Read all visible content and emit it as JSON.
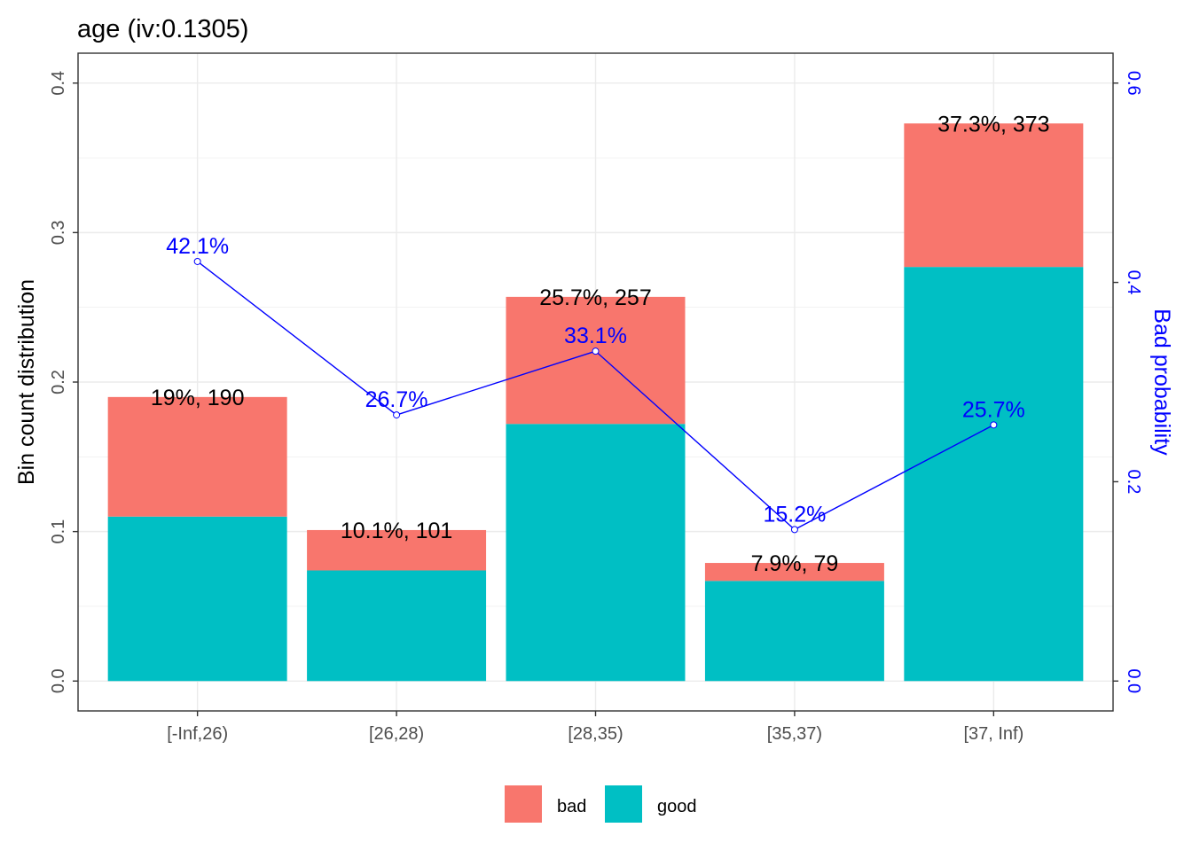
{
  "chart_data": {
    "type": "bar",
    "title": "age  (iv:0.1305)",
    "categories": [
      "[-Inf,26)",
      "[26,28)",
      "[28,35)",
      "[35,37)",
      "[37, Inf)"
    ],
    "series": [
      {
        "name": "good",
        "values": [
          0.11,
          0.074,
          0.172,
          0.067,
          0.277
        ]
      },
      {
        "name": "bad",
        "values": [
          0.08,
          0.027,
          0.085,
          0.012,
          0.096
        ]
      }
    ],
    "bar_labels": [
      "19%, 190",
      "10.1%, 101",
      "25.7%, 257",
      "7.9%, 79",
      "37.3%, 373"
    ],
    "totals": [
      0.19,
      0.101,
      0.257,
      0.079,
      0.373
    ],
    "line": {
      "values": [
        0.421,
        0.267,
        0.331,
        0.152,
        0.257
      ],
      "labels": [
        "42.1%",
        "26.7%",
        "33.1%",
        "15.2%",
        "25.7%"
      ]
    },
    "ylabel": "Bin count distribution",
    "y2label": "Bad probability",
    "ylim": [
      -0.02,
      0.42
    ],
    "y2lim": [
      -0.03,
      0.63
    ],
    "yticks": [
      "0.0",
      "0.1",
      "0.2",
      "0.3",
      "0.4"
    ],
    "y2ticks": [
      "0.0",
      "0.2",
      "0.4",
      "0.6"
    ],
    "legend": {
      "position": "bottom",
      "entries": [
        "bad",
        "good"
      ]
    },
    "grid": true,
    "colors": {
      "good": "#00BFC4",
      "bad": "#F8766D",
      "line": "#0000FF",
      "grid": "#EBEBEB"
    }
  }
}
